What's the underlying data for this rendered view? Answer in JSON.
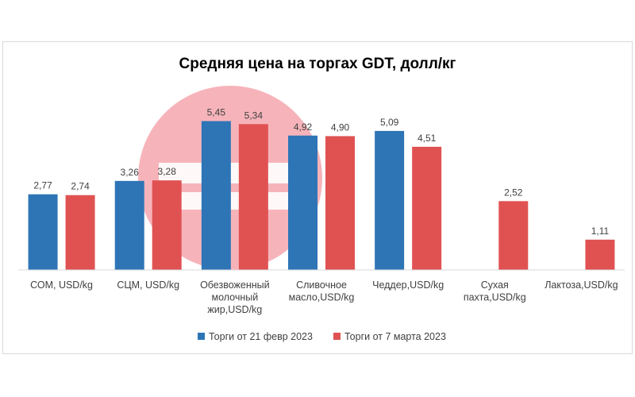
{
  "chart_data": {
    "type": "bar",
    "title": "Средняя цена на торгах GDT, долл/кг",
    "categories": [
      [
        "СОМ, USD/kg"
      ],
      [
        "СЦМ, USD/kg"
      ],
      [
        "Обезвоженный",
        "молочный",
        "жир,USD/kg"
      ],
      [
        "Сливочное",
        "масло,USD/kg"
      ],
      [
        "Чеддер,USD/kg"
      ],
      [
        "Сухая",
        "пахта,USD/kg"
      ],
      [
        "Лактоза,USD/kg"
      ]
    ],
    "series": [
      {
        "name": "Торги от 21 февр 2023",
        "color": "#2e75b6",
        "values": [
          2.77,
          3.26,
          5.45,
          4.92,
          5.09,
          null,
          null
        ],
        "labels": [
          "2,77",
          "3,26",
          "5,45",
          "4,92",
          "5,09",
          "",
          ""
        ]
      },
      {
        "name": "Торги от 7 марта 2023",
        "color": "#e05252",
        "values": [
          2.74,
          3.28,
          5.34,
          4.9,
          4.51,
          2.52,
          1.11
        ],
        "labels": [
          "2,74",
          "3,28",
          "5,34",
          "4,90",
          "4,51",
          "2,52",
          "1,11"
        ]
      }
    ],
    "ylim": [
      0,
      6
    ],
    "grid": false,
    "legend": "bottom",
    "watermark_color": "#f4a7ae"
  }
}
